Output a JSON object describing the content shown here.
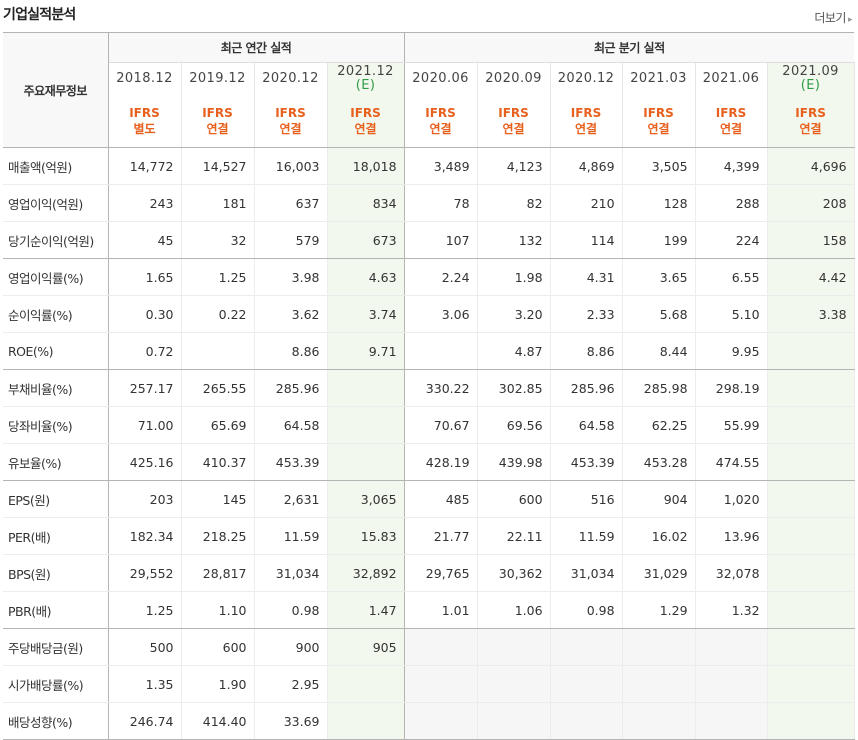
{
  "header": {
    "title": "기업실적분석",
    "more_label": "더보기",
    "more_icon": "chevron-right-icon"
  },
  "table": {
    "corner_label": "주요재무정보",
    "annual_group_label": "최근 연간 실적",
    "quarter_group_label": "최근 분기 실적",
    "annual_periods": [
      {
        "period": "2018.12",
        "est": "",
        "std": "IFRS",
        "scope": "별도"
      },
      {
        "period": "2019.12",
        "est": "",
        "std": "IFRS",
        "scope": "연결"
      },
      {
        "period": "2020.12",
        "est": "",
        "std": "IFRS",
        "scope": "연결"
      },
      {
        "period": "2021.12",
        "est": "(E)",
        "std": "IFRS",
        "scope": "연결"
      }
    ],
    "quarter_periods": [
      {
        "period": "2020.06",
        "est": "",
        "std": "IFRS",
        "scope": "연결"
      },
      {
        "period": "2020.09",
        "est": "",
        "std": "IFRS",
        "scope": "연결"
      },
      {
        "period": "2020.12",
        "est": "",
        "std": "IFRS",
        "scope": "연결"
      },
      {
        "period": "2021.03",
        "est": "",
        "std": "IFRS",
        "scope": "연결"
      },
      {
        "period": "2021.06",
        "est": "",
        "std": "IFRS",
        "scope": "연결"
      },
      {
        "period": "2021.09",
        "est": "(E)",
        "std": "IFRS",
        "scope": "연결"
      }
    ],
    "rows": [
      {
        "label": "매출액(억원)",
        "values": [
          "14,772",
          "14,527",
          "16,003",
          "18,018",
          "3,489",
          "4,123",
          "4,869",
          "3,505",
          "4,399",
          "4,696"
        ]
      },
      {
        "label": "영업이익(억원)",
        "values": [
          "243",
          "181",
          "637",
          "834",
          "78",
          "82",
          "210",
          "128",
          "288",
          "208"
        ]
      },
      {
        "label": "당기순이익(억원)",
        "values": [
          "45",
          "32",
          "579",
          "673",
          "107",
          "132",
          "114",
          "199",
          "224",
          "158"
        ]
      },
      {
        "label": "영업이익률(%)",
        "values": [
          "1.65",
          "1.25",
          "3.98",
          "4.63",
          "2.24",
          "1.98",
          "4.31",
          "3.65",
          "6.55",
          "4.42"
        ]
      },
      {
        "label": "순이익률(%)",
        "values": [
          "0.30",
          "0.22",
          "3.62",
          "3.74",
          "3.06",
          "3.20",
          "2.33",
          "5.68",
          "5.10",
          "3.38"
        ]
      },
      {
        "label": "ROE(%)",
        "values": [
          "0.72",
          "",
          "8.86",
          "9.71",
          "",
          "4.87",
          "8.86",
          "8.44",
          "9.95",
          ""
        ]
      },
      {
        "label": "부채비율(%)",
        "values": [
          "257.17",
          "265.55",
          "285.96",
          "",
          "330.22",
          "302.85",
          "285.96",
          "285.98",
          "298.19",
          ""
        ]
      },
      {
        "label": "당좌비율(%)",
        "values": [
          "71.00",
          "65.69",
          "64.58",
          "",
          "70.67",
          "69.56",
          "64.58",
          "62.25",
          "55.99",
          ""
        ]
      },
      {
        "label": "유보율(%)",
        "values": [
          "425.16",
          "410.37",
          "453.39",
          "",
          "428.19",
          "439.98",
          "453.39",
          "453.28",
          "474.55",
          ""
        ]
      },
      {
        "label": "EPS(원)",
        "values": [
          "203",
          "145",
          "2,631",
          "3,065",
          "485",
          "600",
          "516",
          "904",
          "1,020",
          ""
        ]
      },
      {
        "label": "PER(배)",
        "values": [
          "182.34",
          "218.25",
          "11.59",
          "15.83",
          "21.77",
          "22.11",
          "11.59",
          "16.02",
          "13.96",
          ""
        ]
      },
      {
        "label": "BPS(원)",
        "values": [
          "29,552",
          "28,817",
          "31,034",
          "32,892",
          "29,765",
          "30,362",
          "31,034",
          "31,029",
          "32,078",
          ""
        ]
      },
      {
        "label": "PBR(배)",
        "values": [
          "1.25",
          "1.10",
          "0.98",
          "1.47",
          "1.01",
          "1.06",
          "0.98",
          "1.29",
          "1.32",
          ""
        ]
      },
      {
        "label": "주당배당금(원)",
        "values": [
          "500",
          "600",
          "900",
          "905",
          "",
          "",
          "",
          "",
          "",
          ""
        ]
      },
      {
        "label": "시가배당률(%)",
        "values": [
          "1.35",
          "1.90",
          "2.95",
          "",
          "",
          "",
          "",
          "",
          "",
          ""
        ]
      },
      {
        "label": "배당성향(%)",
        "values": [
          "246.74",
          "414.40",
          "33.69",
          "",
          "",
          "",
          "",
          "",
          "",
          ""
        ]
      }
    ],
    "group_end_rows": [
      2,
      5,
      8,
      12,
      15
    ],
    "gray_quarter_rows": [
      13,
      14,
      15
    ],
    "colors": {
      "ifrs_text": "#e8601d",
      "estimate_bg": "#f2f8ed",
      "estimate_tag": "#2e9c46",
      "header_bg": "#f8f8f8",
      "empty_cell_bg": "#f6f6f6"
    }
  }
}
